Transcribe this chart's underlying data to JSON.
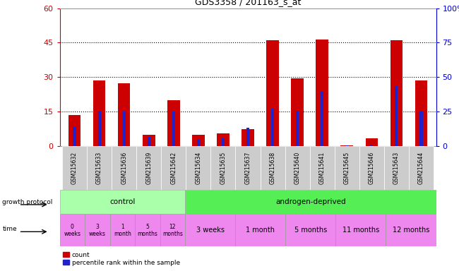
{
  "title": "GDS3358 / 201163_s_at",
  "samples": [
    "GSM215632",
    "GSM215633",
    "GSM215636",
    "GSM215639",
    "GSM215642",
    "GSM215634",
    "GSM215635",
    "GSM215637",
    "GSM215638",
    "GSM215640",
    "GSM215641",
    "GSM215645",
    "GSM215646",
    "GSM215643",
    "GSM215644"
  ],
  "count_values": [
    13.5,
    28.5,
    27.5,
    5.0,
    20.0,
    5.0,
    5.5,
    7.5,
    46.0,
    29.5,
    46.5,
    0.5,
    3.5,
    46.0,
    28.5
  ],
  "percentile_values": [
    8.5,
    15.5,
    15.0,
    4.0,
    15.0,
    3.0,
    3.5,
    8.0,
    16.5,
    15.5,
    24.0,
    0.5,
    0.5,
    26.0,
    15.0
  ],
  "ylim_left": [
    0,
    60
  ],
  "ylim_right": [
    0,
    100
  ],
  "yticks_left": [
    0,
    15,
    30,
    45,
    60
  ],
  "yticks_right": [
    0,
    25,
    50,
    75,
    100
  ],
  "bar_color_red": "#cc0000",
  "bar_color_blue": "#2222cc",
  "control_color": "#aaffaa",
  "androgen_color": "#55ee55",
  "time_color": "#ee88ee",
  "tick_label_color": "#cc0000",
  "right_axis_color": "#0000cc",
  "ctrl_time_labels": [
    "0\nweeks",
    "3\nweeks",
    "1\nmonth",
    "5\nmonths",
    "12\nmonths"
  ],
  "androgen_time_groups": [
    [
      5,
      7,
      "3 weeks"
    ],
    [
      7,
      9,
      "1 month"
    ],
    [
      9,
      11,
      "5 months"
    ],
    [
      11,
      13,
      "11 months"
    ],
    [
      13,
      15,
      "12 months"
    ]
  ]
}
